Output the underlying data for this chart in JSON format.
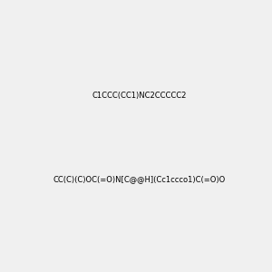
{
  "molecule1_smiles": "C1CCC(CC1)NC2CCCCC2",
  "molecule2_smiles": "CC(C)(C)OC(=O)N[C@@H](Cc1ccco1)C(=O)O",
  "background_color": "#f0f0f0",
  "figsize": [
    3.0,
    3.0
  ],
  "dpi": 100
}
